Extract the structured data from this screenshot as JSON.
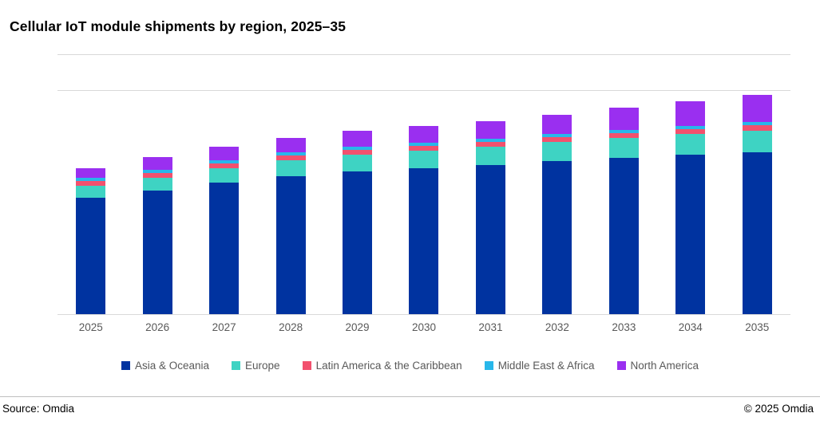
{
  "title": "Cellular IoT module shipments by region, 2025–35",
  "footer": {
    "source": "Source: Omdia",
    "copyright": "© 2025 Omdia"
  },
  "chart_data": {
    "type": "bar",
    "stacked": true,
    "title": "Cellular IoT module shipments by region, 2025–35",
    "xlabel": "",
    "ylabel": "",
    "ylim": [
      0,
      325
    ],
    "y_axis_tick_labels_visible": false,
    "grid": "horizontal-top-only",
    "legend_position": "bottom",
    "categories": [
      "2025",
      "2026",
      "2027",
      "2028",
      "2029",
      "2030",
      "2031",
      "2032",
      "2033",
      "2034",
      "2035"
    ],
    "series": [
      {
        "name": "Asia & Oceania",
        "color": "#0033a0",
        "values": [
          146,
          155,
          165,
          173,
          179,
          183,
          187,
          192,
          196,
          200,
          203
        ]
      },
      {
        "name": "Europe",
        "color": "#3ed3c3",
        "values": [
          15,
          16,
          18,
          20,
          21,
          22,
          23,
          24,
          25,
          26,
          27
        ]
      },
      {
        "name": "Latin America & the Caribbean",
        "color": "#f2516e",
        "values": [
          6,
          6,
          6,
          6,
          6,
          6,
          6,
          6,
          6,
          6,
          7
        ]
      },
      {
        "name": "Middle East & Africa",
        "color": "#28b7ea",
        "values": [
          4,
          4,
          4,
          4,
          4,
          4,
          4,
          4,
          4,
          4,
          4
        ]
      },
      {
        "name": "North America",
        "color": "#9a2ff0",
        "values": [
          12,
          16,
          17,
          18,
          20,
          21,
          22,
          24,
          28,
          31,
          34
        ]
      }
    ],
    "totals": [
      183,
      197,
      210,
      221,
      230,
      236,
      242,
      250,
      259,
      267,
      275
    ]
  }
}
